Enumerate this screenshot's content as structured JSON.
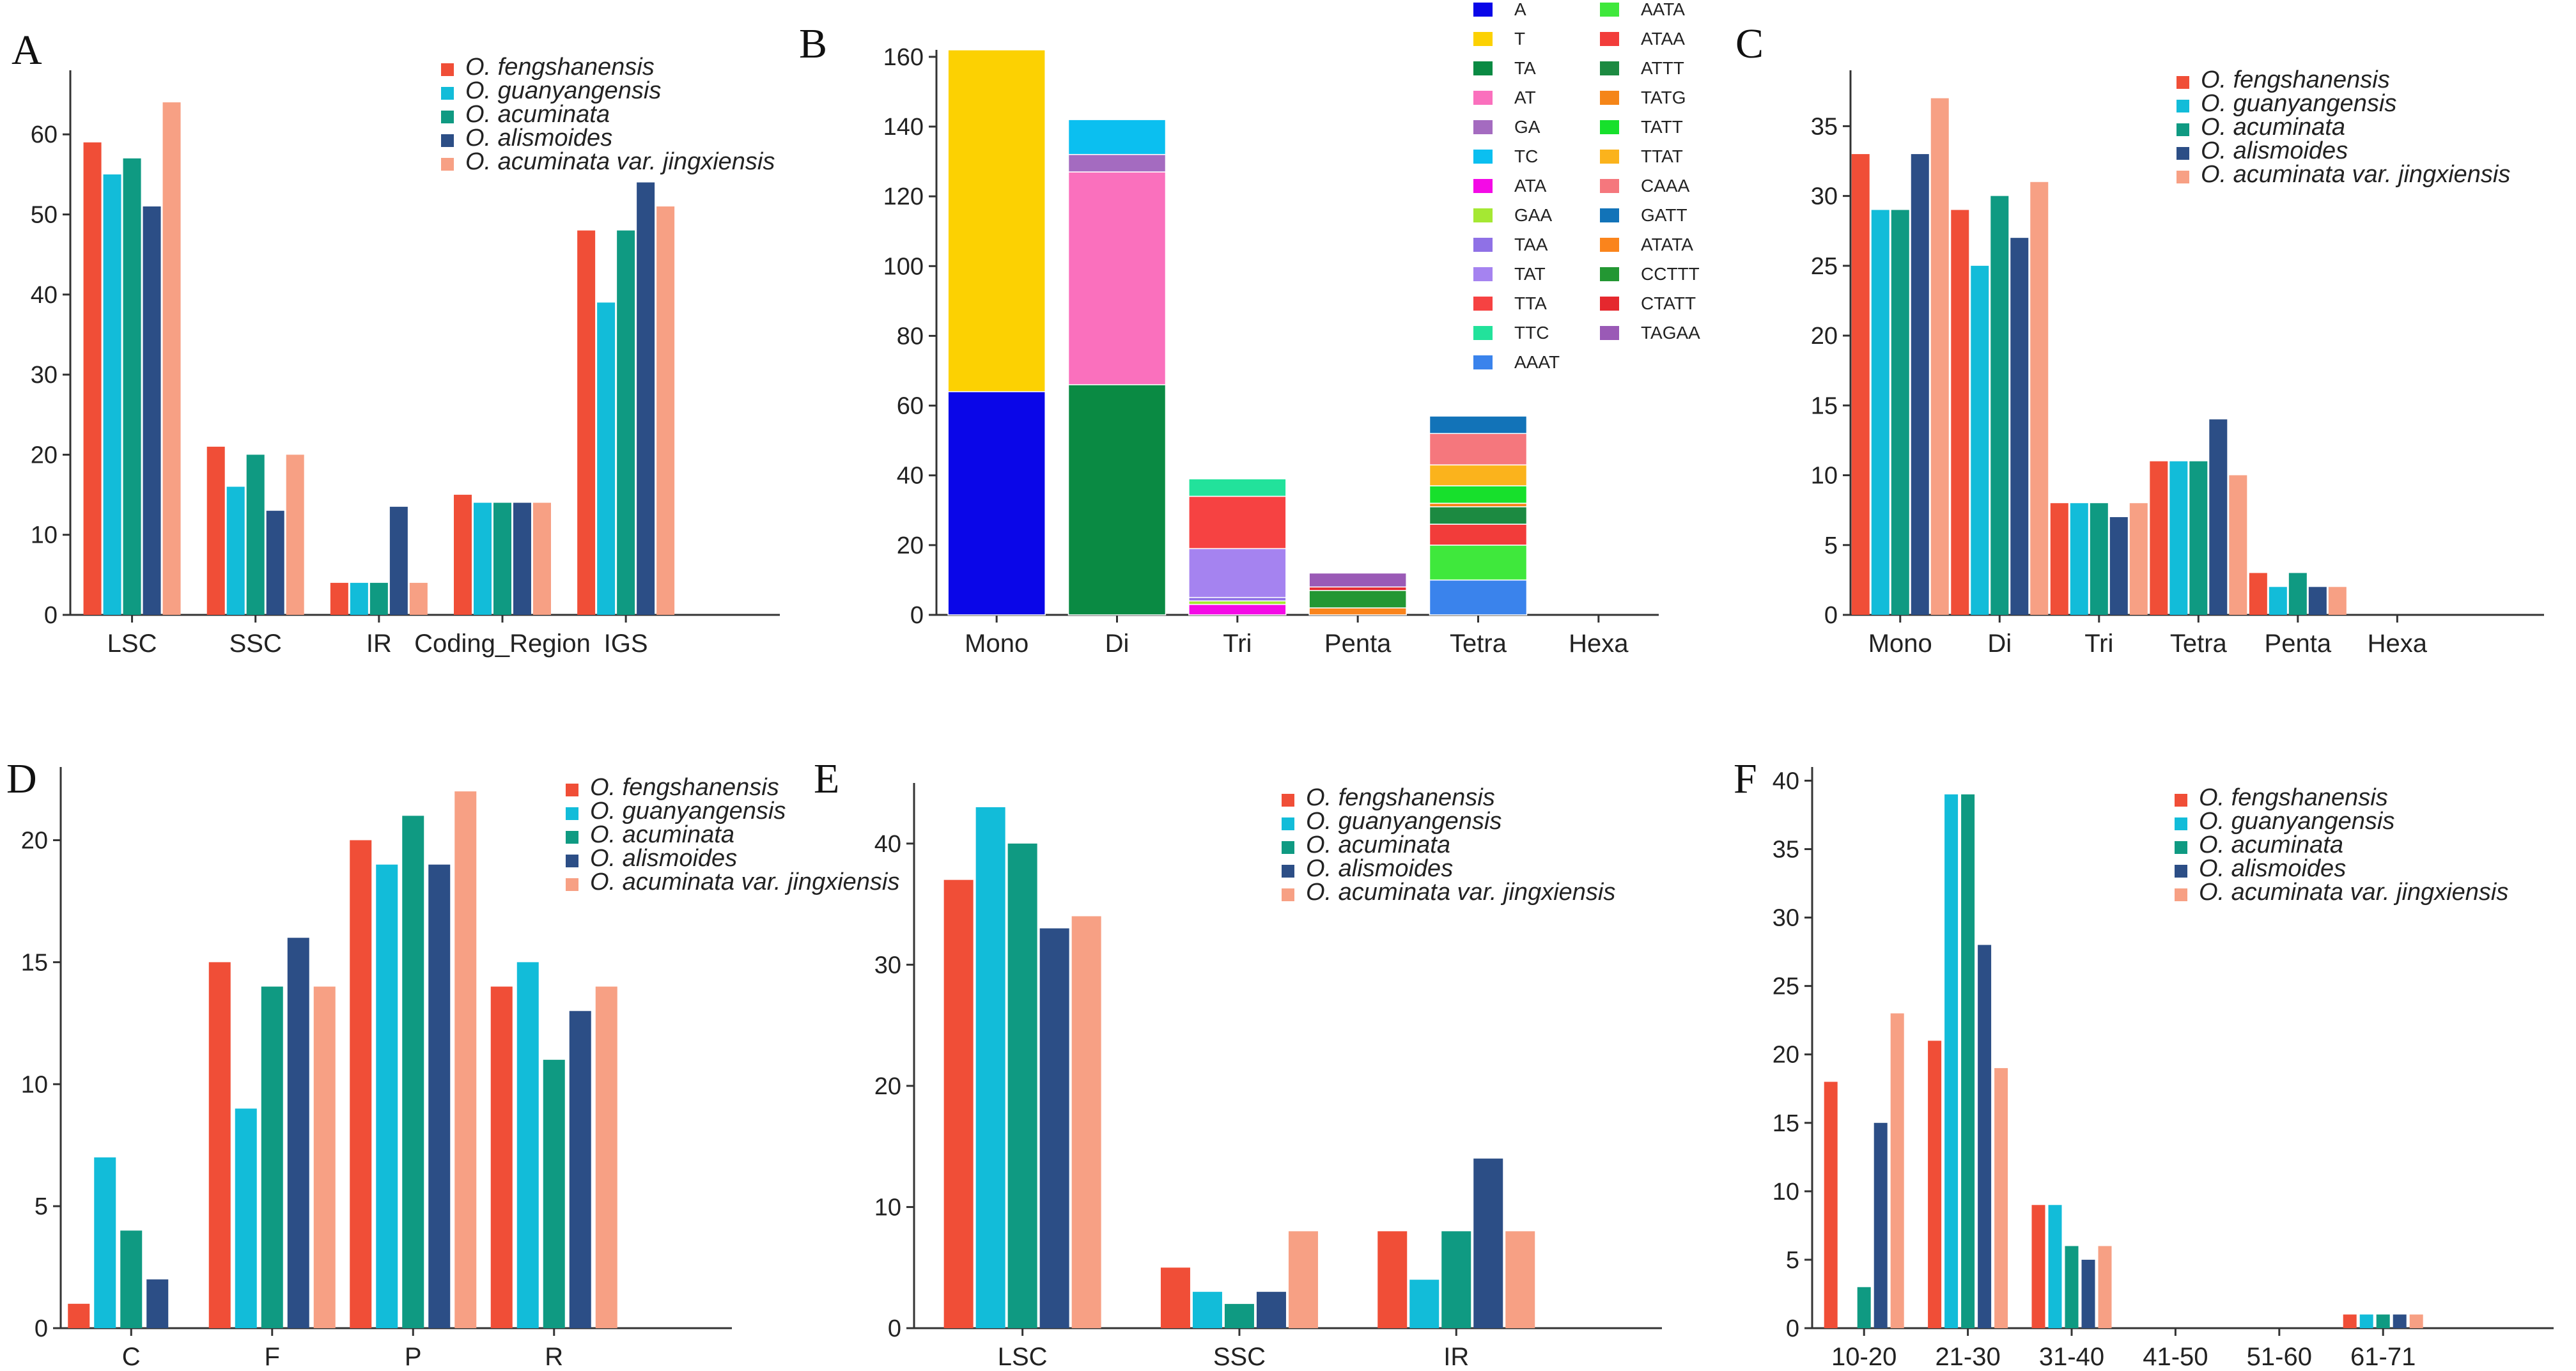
{
  "species": [
    "O. fengshanensis",
    "O. guanyangensis",
    "O. acuminata",
    "O. alismoides",
    "O. acuminata var. jingxiensis"
  ],
  "colors": [
    "#f04e37",
    "#12bcd9",
    "#0f9a82",
    "#2c4e86",
    "#f7a084"
  ],
  "chart_data": [
    {
      "panel": "A",
      "type": "bar",
      "categories": [
        "LSC",
        "SSC",
        "IR",
        "Coding_Region",
        "IGS"
      ],
      "ylim": [
        0,
        68
      ],
      "yticks": [
        0,
        10,
        20,
        30,
        40,
        50,
        60
      ],
      "legend": [
        "O. fengshanensis",
        "O. guanyangensis",
        "O. acuminata",
        "O. alismoides",
        "O. acuminata var. jingxiensis"
      ],
      "series": [
        {
          "name": "O. fengshanensis",
          "values": [
            59,
            21,
            4,
            15,
            48
          ]
        },
        {
          "name": "O. guanyangensis",
          "values": [
            55,
            16,
            4,
            14,
            39
          ]
        },
        {
          "name": "O. acuminata",
          "values": [
            57,
            20,
            4,
            14,
            48
          ]
        },
        {
          "name": "O. alismoides",
          "values": [
            51,
            13,
            13.5,
            14,
            54
          ]
        },
        {
          "name": "O. acuminata var. jingxiensis",
          "values": [
            64,
            20,
            4,
            14,
            51
          ]
        }
      ]
    },
    {
      "panel": "B",
      "type": "stacked-bar",
      "categories": [
        "Mono",
        "Di",
        "Tri",
        "Penta",
        "Tetra",
        "Hexa"
      ],
      "ylim": [
        0,
        162
      ],
      "yticks": [
        0,
        20,
        40,
        60,
        80,
        100,
        120,
        140,
        160
      ],
      "legend": [
        "A",
        "T",
        "TA",
        "AT",
        "GA",
        "TC",
        "ATA",
        "GAA",
        "TAA",
        "TAT",
        "TTA",
        "TTC",
        "AAAT",
        "AATA",
        "ATAA",
        "ATTT",
        "TATG",
        "TATT",
        "TTAT",
        "CAAA",
        "GATT",
        "ATATA",
        "CCTTT",
        "CTATT",
        "TAGAA"
      ],
      "legend_colors": [
        "#0a06e8",
        "#fcd102",
        "#0a8a43",
        "#fa70bd",
        "#a46bc0",
        "#0bbff0",
        "#f40ae6",
        "#a5e833",
        "#8f71e6",
        "#a583f0",
        "#f64242",
        "#22e29b",
        "#3a83ec",
        "#3fe83c",
        "#f23c3a",
        "#1c8a41",
        "#f58518",
        "#17e02c",
        "#fbb31c",
        "#f5777d",
        "#1273b8",
        "#fa841c",
        "#239733",
        "#e5282e",
        "#9a5ab6"
      ],
      "stacks": [
        {
          "category": "Mono",
          "segments": [
            {
              "motif": "A",
              "value": 64
            },
            {
              "motif": "T",
              "value": 98
            }
          ]
        },
        {
          "category": "Di",
          "segments": [
            {
              "motif": "TA",
              "value": 66
            },
            {
              "motif": "AT",
              "value": 61
            },
            {
              "motif": "GA",
              "value": 5
            },
            {
              "motif": "TC",
              "value": 10
            }
          ]
        },
        {
          "category": "Tri",
          "segments": [
            {
              "motif": "ATA",
              "value": 3
            },
            {
              "motif": "GAA",
              "value": 1
            },
            {
              "motif": "TAA",
              "value": 1
            },
            {
              "motif": "TAT",
              "value": 14
            },
            {
              "motif": "TTA",
              "value": 15
            },
            {
              "motif": "TTC",
              "value": 5
            }
          ]
        },
        {
          "category": "Penta",
          "segments": [
            {
              "motif": "ATATA",
              "value": 2
            },
            {
              "motif": "CCTTT",
              "value": 5
            },
            {
              "motif": "CTATT",
              "value": 1
            },
            {
              "motif": "TAGAA",
              "value": 4
            }
          ]
        },
        {
          "category": "Tetra",
          "segments": [
            {
              "motif": "AAAT",
              "value": 10
            },
            {
              "motif": "AATA",
              "value": 10
            },
            {
              "motif": "ATAA",
              "value": 6
            },
            {
              "motif": "ATTT",
              "value": 5
            },
            {
              "motif": "TATG",
              "value": 1
            },
            {
              "motif": "TATT",
              "value": 5
            },
            {
              "motif": "TTAT",
              "value": 6
            },
            {
              "motif": "CAAA",
              "value": 9
            },
            {
              "motif": "GATT",
              "value": 5
            }
          ]
        },
        {
          "category": "Hexa",
          "segments": []
        }
      ]
    },
    {
      "panel": "C",
      "type": "bar",
      "categories": [
        "Mono",
        "Di",
        "Tri",
        "Tetra",
        "Penta",
        "Hexa"
      ],
      "ylim": [
        0,
        39
      ],
      "yticks": [
        0,
        5,
        10,
        15,
        20,
        25,
        30,
        35
      ],
      "legend": [
        "O. fengshanensis",
        "O. guanyangensis",
        "O. acuminata",
        "O. alismoides",
        "O. acuminata var. jingxiensis"
      ],
      "series": [
        {
          "name": "O. fengshanensis",
          "values": [
            33,
            29,
            8,
            11,
            3,
            0
          ]
        },
        {
          "name": "O. guanyangensis",
          "values": [
            29,
            25,
            8,
            11,
            2,
            0
          ]
        },
        {
          "name": "O. acuminata",
          "values": [
            29,
            30,
            8,
            11,
            3,
            0
          ]
        },
        {
          "name": "O. alismoides",
          "values": [
            33,
            27,
            7,
            14,
            2,
            0
          ]
        },
        {
          "name": "O. acuminata var. jingxiensis",
          "values": [
            37,
            31,
            8,
            10,
            2,
            0
          ]
        }
      ]
    },
    {
      "panel": "D",
      "type": "bar",
      "categories": [
        "C",
        "F",
        "P",
        "R"
      ],
      "ylim": [
        0,
        23
      ],
      "yticks": [
        0,
        5,
        10,
        15,
        20
      ],
      "legend": [
        "O. fengshanensis",
        "O. guanyangensis",
        "O. acuminata",
        "O. alismoides",
        "O. acuminata var. jingxiensis"
      ],
      "series": [
        {
          "name": "O. fengshanensis",
          "values": [
            1,
            15,
            20,
            14
          ]
        },
        {
          "name": "O. guanyangensis",
          "values": [
            7,
            9,
            19,
            15
          ]
        },
        {
          "name": "O. acuminata",
          "values": [
            4,
            14,
            21,
            11
          ]
        },
        {
          "name": "O. alismoides",
          "values": [
            2,
            16,
            19,
            13
          ]
        },
        {
          "name": "O. acuminata var. jingxiensis",
          "values": [
            0,
            14,
            22,
            14
          ]
        }
      ]
    },
    {
      "panel": "E",
      "type": "bar",
      "categories": [
        "LSC",
        "SSC",
        "IR"
      ],
      "ylim": [
        0,
        45
      ],
      "yticks": [
        0,
        10,
        20,
        30,
        40
      ],
      "legend": [
        "O. fengshanensis",
        "O. guanyangensis",
        "O. acuminata",
        "O. alismoides",
        "O. acuminata var. jingxiensis"
      ],
      "series": [
        {
          "name": "O. fengshanensis",
          "values": [
            37,
            5,
            8
          ]
        },
        {
          "name": "O. guanyangensis",
          "values": [
            43,
            3,
            4
          ]
        },
        {
          "name": "O. acuminata",
          "values": [
            40,
            2,
            8
          ]
        },
        {
          "name": "O. alismoides",
          "values": [
            33,
            3,
            14
          ]
        },
        {
          "name": "O. acuminata var. jingxiensis",
          "values": [
            34,
            8,
            8
          ]
        }
      ]
    },
    {
      "panel": "F",
      "type": "bar",
      "categories": [
        "10-20",
        "21-30",
        "31-40",
        "41-50",
        "51-60",
        "61-71"
      ],
      "ylim": [
        0,
        41
      ],
      "yticks": [
        0,
        5,
        10,
        15,
        20,
        25,
        30,
        35,
        40
      ],
      "legend": [
        "O. fengshanensis",
        "O. guanyangensis",
        "O. acuminata",
        "O. alismoides",
        "O. acuminata var. jingxiensis"
      ],
      "series": [
        {
          "name": "O. fengshanensis",
          "values": [
            18,
            21,
            9,
            0,
            0,
            1
          ]
        },
        {
          "name": "O. guanyangensis",
          "values": [
            0,
            39,
            9,
            0,
            0,
            1
          ]
        },
        {
          "name": "O. acuminata",
          "values": [
            3,
            39,
            6,
            0,
            0,
            1
          ]
        },
        {
          "name": "O. alismoides",
          "values": [
            15,
            28,
            5,
            0,
            0,
            1
          ]
        },
        {
          "name": "O. acuminata var. jingxiensis",
          "values": [
            23,
            19,
            6,
            0,
            0,
            1
          ]
        }
      ]
    }
  ]
}
